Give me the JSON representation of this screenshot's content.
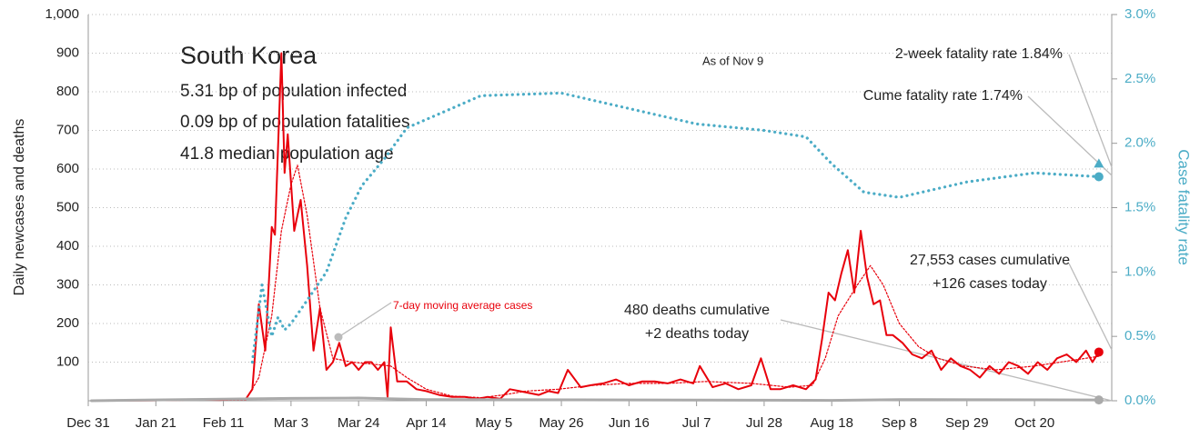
{
  "chart_data": {
    "type": "line",
    "title": "South Korea",
    "subtitle": [
      "5.31 bp of population infected",
      "0.09 bp of population fatalities",
      "41.8 median population age"
    ],
    "note": "As of Nov 9",
    "y_label": "Daily newcases and deaths",
    "y2_label": "Case fatality rate",
    "annotations": [
      "7-day moving average cases",
      "480 deaths cumulative",
      "+2 deaths today",
      "27,553 cases cumulative",
      "+126 cases today",
      "2-week fatality rate 1.84%",
      "Cume fatality rate 1.74%"
    ],
    "xlim": [
      "Dec 31",
      "Nov 13"
    ],
    "xticks": [
      "Dec 31",
      "Jan 21",
      "Feb 11",
      "Mar 3",
      "Mar 24",
      "Apr 14",
      "May 5",
      "May 26",
      "Jun 16",
      "Jul 7",
      "Jul 28",
      "Aug 18",
      "Sep 8",
      "Sep 29",
      "Oct 20"
    ],
    "ylim": [
      0,
      1000
    ],
    "yticks": [
      100,
      200,
      300,
      400,
      500,
      600,
      700,
      800,
      900,
      {
        "value": 1000,
        "label": "1,000"
      }
    ],
    "y2lim": [
      0,
      3
    ],
    "y2ticks": [
      {
        "value": 0,
        "label": "0.0%"
      },
      {
        "value": 0.5,
        "label": "0.5%"
      },
      {
        "value": 1,
        "label": "1.0%"
      },
      {
        "value": 1.5,
        "label": "1.5%"
      },
      {
        "value": 2,
        "label": "2.0%"
      },
      {
        "value": 2.5,
        "label": "2.5%"
      },
      {
        "value": 3,
        "label": "3.0%"
      }
    ],
    "grid": true,
    "series": [
      {
        "color": "#e8000b",
        "style": "solid",
        "width": 2,
        "marker": "circle",
        "x": [
          "Jan 1",
          "Jan 20",
          "Feb 1",
          "Feb 10",
          "Feb 18",
          "Feb 20",
          "Feb 22",
          "Feb 24",
          "Feb 26",
          "Feb 27",
          "Feb 29",
          "Mar 1",
          "Mar 2",
          "Mar 4",
          "Mar 6",
          "Mar 8",
          "Mar 10",
          "Mar 12",
          "Mar 14",
          "Mar 16",
          "Mar 18",
          "Mar 20",
          "Mar 22",
          "Mar 24",
          "Mar 26",
          "Mar 28",
          "Mar 30",
          "Apr 1",
          "Apr 2",
          "Apr 3",
          "Apr 5",
          "Apr 8",
          "Apr 11",
          "Apr 14",
          "Apr 18",
          "Apr 22",
          "Apr 26",
          "Apr 30",
          "May 3",
          "May 7",
          "May 10",
          "May 13",
          "May 16",
          "May 19",
          "May 22",
          "May 25",
          "May 28",
          "Jun 1",
          "Jun 4",
          "Jun 8",
          "Jun 12",
          "Jun 16",
          "Jun 20",
          "Jun 24",
          "Jun 28",
          "Jul 2",
          "Jul 6",
          "Jul 8",
          "Jul 12",
          "Jul 16",
          "Jul 20",
          "Jul 24",
          "Jul 27",
          "Jul 30",
          "Aug 2",
          "Aug 6",
          "Aug 10",
          "Aug 13",
          "Aug 15",
          "Aug 17",
          "Aug 19",
          "Aug 21",
          "Aug 23",
          "Aug 25",
          "Aug 27",
          "Aug 29",
          "Aug 31",
          "Sep 2",
          "Sep 4",
          "Sep 6",
          "Sep 9",
          "Sep 12",
          "Sep 15",
          "Sep 18",
          "Sep 21",
          "Sep 24",
          "Sep 27",
          "Sep 30",
          "Oct 3",
          "Oct 6",
          "Oct 9",
          "Oct 12",
          "Oct 15",
          "Oct 18",
          "Oct 21",
          "Oct 24",
          "Oct 27",
          "Oct 30",
          "Nov 2",
          "Nov 5",
          "Nov 7",
          "Nov 9"
        ],
        "values": [
          0,
          1,
          3,
          2,
          5,
          30,
          250,
          130,
          450,
          430,
          900,
          590,
          690,
          440,
          520,
          350,
          130,
          240,
          80,
          100,
          150,
          90,
          100,
          80,
          100,
          100,
          80,
          100,
          10,
          190,
          50,
          50,
          30,
          25,
          15,
          10,
          10,
          5,
          10,
          5,
          30,
          25,
          20,
          15,
          25,
          20,
          80,
          35,
          40,
          45,
          55,
          40,
          50,
          50,
          45,
          55,
          45,
          90,
          35,
          45,
          30,
          40,
          110,
          30,
          30,
          40,
          30,
          55,
          160,
          280,
          260,
          330,
          390,
          280,
          440,
          320,
          250,
          260,
          170,
          170,
          150,
          120,
          110,
          130,
          80,
          110,
          90,
          80,
          60,
          90,
          70,
          100,
          90,
          70,
          100,
          80,
          110,
          120,
          100,
          130,
          100,
          126
        ]
      },
      {
        "color": "#e8000b",
        "style": "dotted",
        "width": 1.2,
        "x": [
          "Jan 1",
          "Feb 18",
          "Feb 22",
          "Feb 26",
          "Feb 29",
          "Mar 3",
          "Mar 5",
          "Mar 8",
          "Mar 12",
          "Mar 16",
          "Mar 22",
          "Mar 28",
          "Apr 3",
          "Apr 8",
          "Apr 14",
          "Apr 22",
          "May 1",
          "May 8",
          "May 15",
          "May 25",
          "Jun 5",
          "Jun 16",
          "Jun 28",
          "Jul 10",
          "Jul 24",
          "Aug 5",
          "Aug 12",
          "Aug 16",
          "Aug 20",
          "Aug 26",
          "Aug 30",
          "Sep 3",
          "Sep 8",
          "Sep 14",
          "Sep 20",
          "Sep 28",
          "Oct 8",
          "Oct 20",
          "Nov 1",
          "Nov 9"
        ],
        "values": [
          0,
          2,
          60,
          220,
          440,
          560,
          610,
          480,
          240,
          110,
          100,
          95,
          90,
          60,
          30,
          12,
          8,
          15,
          25,
          30,
          40,
          45,
          45,
          50,
          45,
          35,
          40,
          110,
          220,
          300,
          350,
          300,
          200,
          140,
          110,
          90,
          80,
          90,
          105,
          115
        ]
      },
      {
        "color": "#aaaaaa",
        "style": "solid",
        "width": 3,
        "marker": "circle",
        "x": [
          "Jan 1",
          "Mar 3",
          "Mar 24",
          "Apr 14",
          "Aug 18",
          "Sep 8",
          "Nov 9"
        ],
        "values": [
          0,
          6,
          7,
          3,
          1,
          3,
          2
        ]
      },
      {
        "color": "#4bacc6",
        "style": "dotted",
        "width": 3.2,
        "axis": "y2",
        "x": [
          "Feb 20",
          "Feb 23",
          "Feb 26",
          "Feb 28",
          "Mar 1",
          "Mar 3",
          "Mar 8",
          "Mar 14",
          "Mar 20",
          "Mar 25",
          "Apr 1",
          "Apr 8",
          "Apr 20",
          "May 1",
          "May 26",
          "Jun 16",
          "Jul 7",
          "Jul 28",
          "Aug 10",
          "Aug 18",
          "Aug 28",
          "Sep 8",
          "Sep 29",
          "Oct 20",
          "Nov 9"
        ],
        "values": [
          0.3,
          0.9,
          0.5,
          0.65,
          0.55,
          0.6,
          0.78,
          1.0,
          1.42,
          1.67,
          1.88,
          2.12,
          2.25,
          2.37,
          2.39,
          2.27,
          2.15,
          2.1,
          2.05,
          1.84,
          1.62,
          1.58,
          1.7,
          1.77,
          1.74
        ]
      },
      {
        "color": "#4bacc6",
        "axis": "y2",
        "marker": "triangle",
        "x": [
          "Nov 9"
        ],
        "values": [
          1.84
        ]
      },
      {
        "color": "#4bacc6",
        "axis": "y2",
        "marker": "circle",
        "x": [
          "Nov 9"
        ],
        "values": [
          1.74
        ]
      }
    ]
  }
}
